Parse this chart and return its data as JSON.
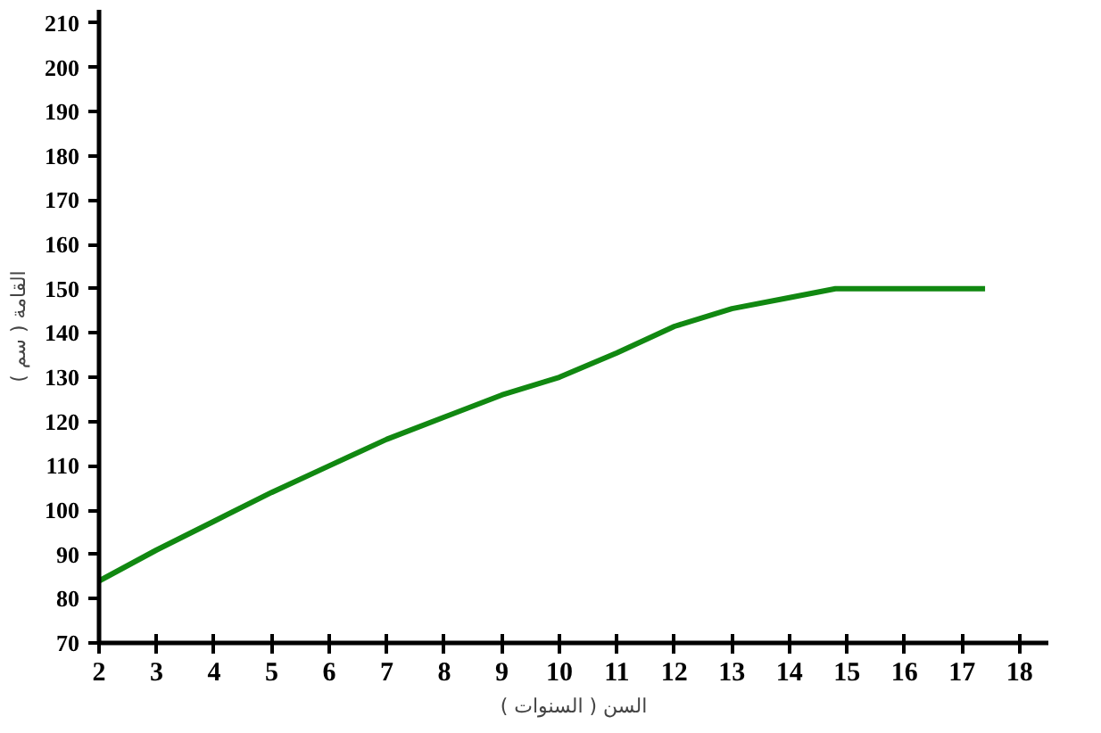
{
  "chart_data": {
    "type": "line",
    "xlabel": "السن ( السنوات )",
    "ylabel": "القامة ( سم )",
    "x": [
      2,
      3,
      4,
      5,
      6,
      7,
      8,
      9,
      10,
      11,
      12,
      13,
      14,
      14.8,
      17.4
    ],
    "series": [
      {
        "color": "#118811",
        "values": [
          84,
          91,
          97.5,
          104,
          110,
          116,
          121,
          126,
          130,
          135.5,
          141.5,
          145.5,
          148,
          150,
          150
        ]
      }
    ],
    "xlim": [
      2,
      18.5
    ],
    "ylim": [
      70,
      213
    ],
    "xticks": [
      2,
      3,
      4,
      5,
      6,
      7,
      8,
      9,
      10,
      11,
      12,
      13,
      14,
      15,
      16,
      17,
      18
    ],
    "yticks": [
      70,
      80,
      90,
      100,
      110,
      120,
      130,
      140,
      150,
      160,
      170,
      180,
      190,
      200,
      210
    ],
    "grid": false,
    "marker": "none",
    "line_style": "solid"
  }
}
